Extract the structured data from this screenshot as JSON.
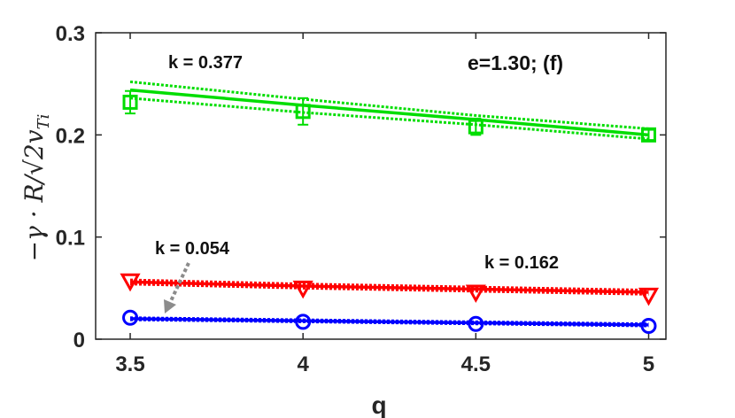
{
  "chart_data": {
    "type": "line",
    "title": "",
    "xlabel": "q",
    "ylabel": "−γ · R/√2 v_Ti",
    "xlim": [
      3.4,
      5.05
    ],
    "ylim": [
      0,
      0.3
    ],
    "x_ticks": [
      "3.5",
      "4",
      "4.5",
      "5"
    ],
    "y_ticks": [
      "0",
      "0.1",
      "0.2",
      "0.3"
    ],
    "grid": false,
    "colors": {
      "green": "#00dd00",
      "red": "#ff0000",
      "blue": "#0000ff",
      "arrow": "#8c8c8c"
    },
    "series": [
      {
        "color": "#00dd00",
        "marker": "square",
        "x": [
          3.5,
          4,
          4.5,
          5
        ],
        "values": [
          0.232,
          0.223,
          0.208,
          0.2
        ],
        "errors": [
          0.011,
          0.013,
          0.008,
          0.005
        ],
        "fit": [
          0.244,
          0.229,
          0.215,
          0.2
        ],
        "fit_band": {
          "upper": [
            0.252,
            0.235,
            0.219,
            0.206
          ],
          "lower": [
            0.236,
            0.222,
            0.21,
            0.196
          ]
        },
        "fit_label": "k = 0.377"
      },
      {
        "color": "#ff0000",
        "marker": "triangle-down",
        "x": [
          3.5,
          4,
          4.5,
          5
        ],
        "values": [
          0.057,
          0.05,
          0.046,
          0.043
        ],
        "fit": [
          0.056,
          0.052,
          0.049,
          0.046
        ],
        "fit_band": {
          "upper": [
            0.058,
            0.054,
            0.051,
            0.048
          ],
          "lower": [
            0.054,
            0.05,
            0.047,
            0.044
          ]
        },
        "fit_label": "k = 0.162"
      },
      {
        "color": "#0000ff",
        "marker": "circle",
        "x": [
          3.5,
          4,
          4.5,
          5
        ],
        "values": [
          0.021,
          0.017,
          0.015,
          0.013
        ],
        "fit": [
          0.02,
          0.018,
          0.016,
          0.014
        ],
        "fit_band": {
          "upper": [
            0.021,
            0.019,
            0.017,
            0.015
          ],
          "lower": [
            0.019,
            0.017,
            0.015,
            0.013
          ]
        },
        "fit_label": "k = 0.054"
      }
    ],
    "annotations": {
      "panel": "e=1.30; (f)"
    }
  }
}
